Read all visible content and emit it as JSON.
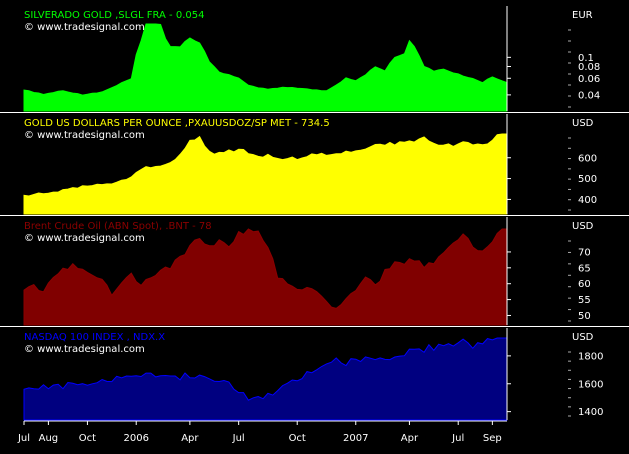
{
  "colors": {
    "background": "#000000",
    "axis": "#ffffff",
    "grid": "#555555"
  },
  "chart_data": {
    "type": "area",
    "x_axis": {
      "ticks": [
        "Jul",
        "Aug",
        "Oct",
        "2006",
        "Apr",
        "Jul",
        "Oct",
        "2007",
        "Apr",
        "Jul",
        "Sep"
      ],
      "tick_index": [
        0,
        5,
        13,
        23,
        34,
        44,
        56,
        68,
        79,
        89,
        96
      ],
      "n_points": 100
    },
    "panels": [
      {
        "id": "silverado",
        "title": "SILVERADO GOLD     ,SLGL FRA - 0.054",
        "credit": "© www.tradesignal.com",
        "unit": "EUR",
        "color": "#00ff00",
        "fill": "#00ff00",
        "scale": "log",
        "ylim": [
          0.027,
          0.35
        ],
        "yticks": [
          {
            "v": 0.1,
            "label": "0.1"
          },
          {
            "v": 0.08,
            "label": "0.08"
          },
          {
            "v": 0.06,
            "label": "0.06"
          },
          {
            "v": 0.04,
            "label": "0.04"
          }
        ],
        "keys": [
          [
            0,
            0.045
          ],
          [
            4,
            0.041
          ],
          [
            8,
            0.044
          ],
          [
            12,
            0.04
          ],
          [
            16,
            0.043
          ],
          [
            19,
            0.05
          ],
          [
            22,
            0.06
          ],
          [
            24,
            0.15
          ],
          [
            25,
            0.27
          ],
          [
            26,
            0.3
          ],
          [
            27,
            0.28
          ],
          [
            29,
            0.16
          ],
          [
            30,
            0.13
          ],
          [
            32,
            0.13
          ],
          [
            34,
            0.16
          ],
          [
            36,
            0.14
          ],
          [
            38,
            0.09
          ],
          [
            40,
            0.07
          ],
          [
            42,
            0.065
          ],
          [
            44,
            0.06
          ],
          [
            46,
            0.05
          ],
          [
            50,
            0.046
          ],
          [
            54,
            0.048
          ],
          [
            58,
            0.046
          ],
          [
            62,
            0.044
          ],
          [
            64,
            0.05
          ],
          [
            66,
            0.06
          ],
          [
            68,
            0.057
          ],
          [
            70,
            0.064
          ],
          [
            72,
            0.08
          ],
          [
            74,
            0.072
          ],
          [
            76,
            0.1
          ],
          [
            78,
            0.11
          ],
          [
            79,
            0.15
          ],
          [
            80,
            0.13
          ],
          [
            82,
            0.08
          ],
          [
            84,
            0.072
          ],
          [
            86,
            0.074
          ],
          [
            88,
            0.068
          ],
          [
            90,
            0.064
          ],
          [
            92,
            0.06
          ],
          [
            94,
            0.054
          ],
          [
            96,
            0.063
          ],
          [
            98,
            0.056
          ],
          [
            99,
            0.054
          ]
        ]
      },
      {
        "id": "gold",
        "title": "GOLD US DOLLARS PER OUNCE ,PXAUUSDOZ/SP MET - 734.5",
        "credit": "© www.tradesignal.com",
        "unit": "USD",
        "color": "#ffff00",
        "fill": "#ffff00",
        "scale": "linear",
        "ylim": [
          330,
          810
        ],
        "yticks": [
          {
            "v": 600,
            "label": "600"
          },
          {
            "v": 500,
            "label": "500"
          },
          {
            "v": 400,
            "label": "400"
          }
        ],
        "keys": [
          [
            0,
            420
          ],
          [
            4,
            430
          ],
          [
            8,
            445
          ],
          [
            12,
            465
          ],
          [
            16,
            470
          ],
          [
            19,
            480
          ],
          [
            22,
            510
          ],
          [
            24,
            540
          ],
          [
            26,
            560
          ],
          [
            28,
            555
          ],
          [
            30,
            580
          ],
          [
            32,
            620
          ],
          [
            34,
            680
          ],
          [
            36,
            700
          ],
          [
            37,
            650
          ],
          [
            39,
            610
          ],
          [
            42,
            630
          ],
          [
            44,
            640
          ],
          [
            46,
            620
          ],
          [
            48,
            600
          ],
          [
            50,
            620
          ],
          [
            52,
            590
          ],
          [
            54,
            600
          ],
          [
            56,
            590
          ],
          [
            58,
            610
          ],
          [
            60,
            620
          ],
          [
            62,
            610
          ],
          [
            64,
            620
          ],
          [
            66,
            630
          ],
          [
            68,
            640
          ],
          [
            70,
            640
          ],
          [
            72,
            660
          ],
          [
            74,
            665
          ],
          [
            76,
            670
          ],
          [
            78,
            670
          ],
          [
            80,
            680
          ],
          [
            82,
            690
          ],
          [
            84,
            670
          ],
          [
            86,
            660
          ],
          [
            88,
            660
          ],
          [
            90,
            670
          ],
          [
            92,
            670
          ],
          [
            94,
            660
          ],
          [
            96,
            690
          ],
          [
            98,
            720
          ],
          [
            99,
            734
          ]
        ]
      },
      {
        "id": "brent",
        "title": "Brent Crude Oil (ABN Spot), .BNT - 78",
        "credit": "© www.tradesignal.com",
        "unit": "USD",
        "color": "#8b0000",
        "fill": "#800000",
        "scale": "linear",
        "ylim": [
          47,
          81
        ],
        "yticks": [
          {
            "v": 70,
            "label": "70"
          },
          {
            "v": 65,
            "label": "65"
          },
          {
            "v": 60,
            "label": "60"
          },
          {
            "v": 55,
            "label": "55"
          },
          {
            "v": 50,
            "label": "50"
          }
        ],
        "keys": [
          [
            0,
            58
          ],
          [
            2,
            60
          ],
          [
            4,
            57
          ],
          [
            6,
            62
          ],
          [
            8,
            64
          ],
          [
            10,
            66
          ],
          [
            12,
            64
          ],
          [
            14,
            62
          ],
          [
            16,
            62
          ],
          [
            18,
            57
          ],
          [
            20,
            60
          ],
          [
            22,
            63
          ],
          [
            24,
            60
          ],
          [
            26,
            62
          ],
          [
            28,
            65
          ],
          [
            30,
            65
          ],
          [
            32,
            68
          ],
          [
            34,
            72
          ],
          [
            36,
            74
          ],
          [
            38,
            72
          ],
          [
            40,
            74
          ],
          [
            42,
            72
          ],
          [
            44,
            76
          ],
          [
            46,
            77
          ],
          [
            48,
            76
          ],
          [
            50,
            72
          ],
          [
            52,
            62
          ],
          [
            54,
            60
          ],
          [
            56,
            58
          ],
          [
            58,
            59
          ],
          [
            60,
            57
          ],
          [
            62,
            54
          ],
          [
            64,
            52
          ],
          [
            66,
            56
          ],
          [
            68,
            58
          ],
          [
            70,
            62
          ],
          [
            72,
            59
          ],
          [
            74,
            64
          ],
          [
            76,
            67
          ],
          [
            78,
            66
          ],
          [
            80,
            68
          ],
          [
            82,
            66
          ],
          [
            84,
            67
          ],
          [
            86,
            70
          ],
          [
            88,
            72
          ],
          [
            90,
            76
          ],
          [
            92,
            72
          ],
          [
            94,
            70
          ],
          [
            96,
            74
          ],
          [
            98,
            78
          ],
          [
            99,
            78
          ]
        ]
      },
      {
        "id": "nasdaq",
        "title": "NASDAQ 100 INDEX , NDX.X",
        "credit": "© www.tradesignal.com",
        "unit": "USD",
        "color": "#0000ff",
        "fill": "#000080",
        "scale": "linear",
        "ylim": [
          1340,
          2000
        ],
        "yticks": [
          {
            "v": 1800,
            "label": "1800"
          },
          {
            "v": 1600,
            "label": "1600"
          },
          {
            "v": 1400,
            "label": "1400"
          }
        ],
        "keys": [
          [
            0,
            1560
          ],
          [
            2,
            1580
          ],
          [
            4,
            1590
          ],
          [
            6,
            1575
          ],
          [
            8,
            1580
          ],
          [
            10,
            1595
          ],
          [
            12,
            1580
          ],
          [
            14,
            1590
          ],
          [
            16,
            1610
          ],
          [
            18,
            1630
          ],
          [
            20,
            1650
          ],
          [
            22,
            1640
          ],
          [
            24,
            1655
          ],
          [
            26,
            1665
          ],
          [
            28,
            1640
          ],
          [
            30,
            1660
          ],
          [
            32,
            1650
          ],
          [
            34,
            1660
          ],
          [
            36,
            1660
          ],
          [
            38,
            1640
          ],
          [
            40,
            1620
          ],
          [
            42,
            1590
          ],
          [
            44,
            1540
          ],
          [
            46,
            1500
          ],
          [
            48,
            1490
          ],
          [
            50,
            1520
          ],
          [
            52,
            1560
          ],
          [
            54,
            1600
          ],
          [
            56,
            1640
          ],
          [
            58,
            1680
          ],
          [
            60,
            1720
          ],
          [
            62,
            1730
          ],
          [
            64,
            1760
          ],
          [
            66,
            1750
          ],
          [
            68,
            1770
          ],
          [
            70,
            1780
          ],
          [
            72,
            1770
          ],
          [
            74,
            1790
          ],
          [
            76,
            1790
          ],
          [
            78,
            1820
          ],
          [
            80,
            1830
          ],
          [
            82,
            1850
          ],
          [
            84,
            1860
          ],
          [
            86,
            1870
          ],
          [
            88,
            1880
          ],
          [
            90,
            1900
          ],
          [
            92,
            1870
          ],
          [
            94,
            1890
          ],
          [
            96,
            1910
          ],
          [
            98,
            1930
          ],
          [
            99,
            1950
          ]
        ]
      }
    ]
  }
}
